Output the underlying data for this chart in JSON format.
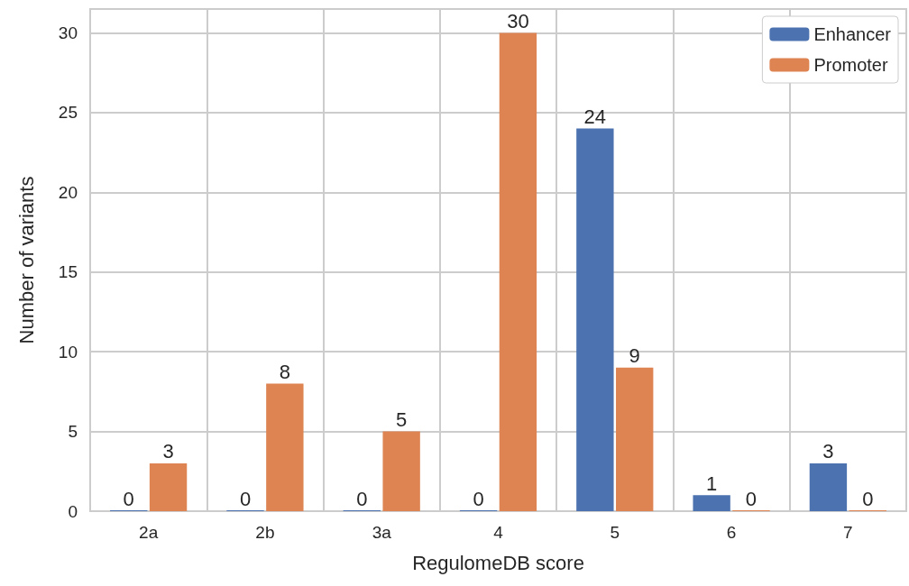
{
  "chart_data": {
    "type": "bar",
    "xlabel": "RegulomeDB score",
    "ylabel": "Number of variants",
    "categories": [
      "2a",
      "2b",
      "3a",
      "4",
      "5",
      "6",
      "7"
    ],
    "series": [
      {
        "name": "Enhancer",
        "color": "#4c72b0",
        "values": [
          0,
          0,
          0,
          0,
          24,
          1,
          3
        ]
      },
      {
        "name": "Promoter",
        "color": "#dd8452",
        "values": [
          3,
          8,
          5,
          30,
          9,
          0,
          0
        ]
      }
    ],
    "ylim": [
      0,
      31.5
    ],
    "yticks": [
      0,
      5,
      10,
      15,
      20,
      25,
      30
    ],
    "grid": true,
    "legend": "top right",
    "data_labels": true
  }
}
